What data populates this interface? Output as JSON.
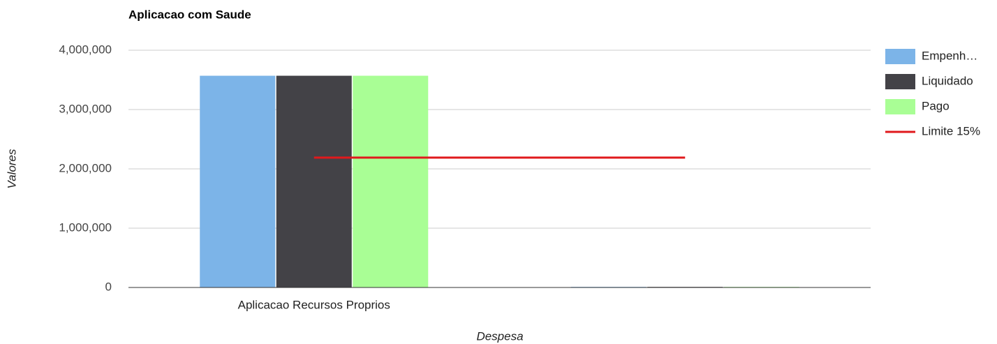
{
  "chart_data": {
    "type": "combo",
    "title": "Aplicacao com Saude",
    "x_label": "Despesa",
    "y_label": "Valores",
    "categories": [
      "Aplicacao Recursos Proprios",
      null
    ],
    "series": [
      {
        "name": "Empenh…",
        "type": "bar",
        "color": "#7cb4e8",
        "values": [
          3570000,
          10000
        ]
      },
      {
        "name": "Liquidado",
        "type": "bar",
        "color": "#434247",
        "values": [
          3570000,
          10000
        ]
      },
      {
        "name": "Pago",
        "type": "bar",
        "color": "#a9fe95",
        "values": [
          3570000,
          10000
        ]
      },
      {
        "name": "Limite 15%",
        "type": "line",
        "color": "#e0191c",
        "values": [
          2190000,
          2190000
        ]
      }
    ],
    "ylim": [
      0,
      4000000
    ],
    "yticks": [
      {
        "value": 0,
        "label": "0"
      },
      {
        "value": 1000000,
        "label": "1,000,000"
      },
      {
        "value": 2000000,
        "label": "2,000,000"
      },
      {
        "value": 3000000,
        "label": "3,000,000"
      },
      {
        "value": 4000000,
        "label": "4,000,000"
      }
    ],
    "grid": true,
    "legend": "right"
  }
}
